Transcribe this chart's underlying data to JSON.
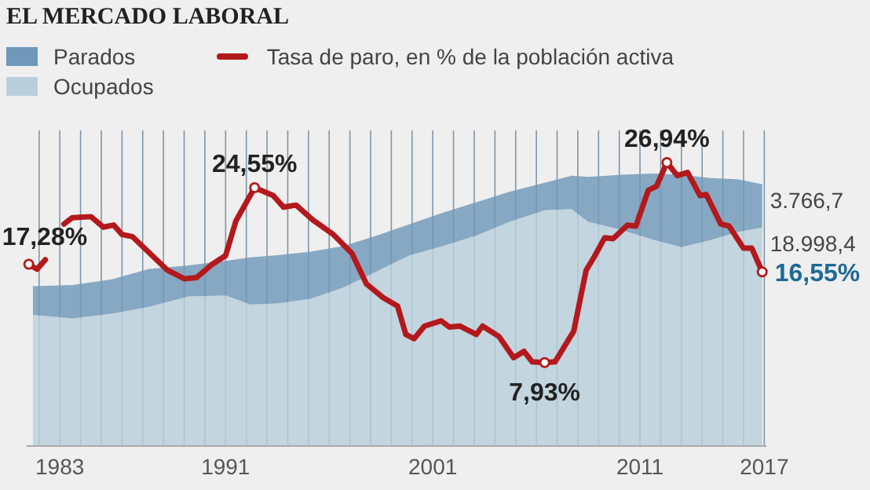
{
  "chart_data": {
    "type": "area",
    "stacked": true,
    "title": "EL MERCADO LABORAL",
    "x": [
      1981.7,
      1983.6,
      1985.5,
      1987.3,
      1989.2,
      1991.0,
      1992.2,
      1993.5,
      1995.1,
      1996.7,
      1998.3,
      1999.9,
      2001.5,
      2003.1,
      2004.7,
      2006.4,
      2007.7,
      2008.5,
      2010.1,
      2011.7,
      2013.0,
      2014.4,
      2015.7,
      2016.9
    ],
    "series": [
      {
        "name": "Ocupados",
        "color": "#b9cfdc",
        "values": [
          11400,
          11100,
          11500,
          12100,
          13000,
          13100,
          12300,
          12400,
          12800,
          13800,
          15200,
          16600,
          17400,
          18300,
          19500,
          20500,
          20600,
          19500,
          18800,
          17900,
          17300,
          17900,
          18600,
          18998.4
        ],
        "value_labels": [
          null,
          null,
          null,
          null,
          null,
          null,
          null,
          null,
          null,
          null,
          null,
          null,
          null,
          null,
          null,
          null,
          null,
          null,
          null,
          null,
          null,
          null,
          null,
          "18.998,4"
        ]
      },
      {
        "name": "Parados",
        "color": "#6f98b9",
        "values": [
          2500,
          2900,
          3000,
          3300,
          2700,
          3000,
          4100,
          4200,
          4100,
          3600,
          3100,
          2700,
          2900,
          2900,
          2600,
          2400,
          2900,
          3900,
          4800,
          5800,
          6300,
          5400,
          4600,
          3766.7
        ],
        "value_labels": [
          null,
          null,
          null,
          null,
          null,
          null,
          null,
          null,
          null,
          null,
          null,
          null,
          null,
          null,
          null,
          null,
          null,
          null,
          null,
          null,
          null,
          null,
          null,
          "3.766,7"
        ]
      },
      {
        "name": "Tasa de paro, en % de la población activa",
        "type": "line",
        "axis": "y2",
        "color": "#b3191c",
        "x": [
          1981.5,
          1981.9,
          1982.3,
          1982.7,
          1983.2,
          1983.6,
          1984.5,
          1985.1,
          1985.6,
          1986.0,
          1986.5,
          1987.3,
          1988.2,
          1989.0,
          1989.6,
          1990.3,
          1991.0,
          1991.5,
          1992.4,
          1993.3,
          1993.8,
          1994.4,
          1995.2,
          1996.2,
          1997.1,
          1997.8,
          1998.6,
          1999.3,
          1999.7,
          2000.1,
          2000.6,
          2001.4,
          2001.8,
          2002.3,
          2003.1,
          2003.4,
          2004.2,
          2004.9,
          2005.4,
          2005.8,
          2006.4,
          2006.9,
          2007.8,
          2008.4,
          2008.8,
          2009.3,
          2009.7,
          2010.4,
          2010.8,
          2011.4,
          2011.8,
          2012.3,
          2012.8,
          2013.3,
          2013.9,
          2014.2,
          2014.9,
          2015.3,
          2016.0,
          2016.4,
          2016.9
        ],
        "values": [
          17.28,
          16.8,
          17.7,
          null,
          21.1,
          21.7,
          21.8,
          20.8,
          21.0,
          20.1,
          19.9,
          18.4,
          16.7,
          15.9,
          16.0,
          17.2,
          18.1,
          21.4,
          24.55,
          23.8,
          22.7,
          22.9,
          21.5,
          20.1,
          18.3,
          15.4,
          14.1,
          13.3,
          10.6,
          10.2,
          11.4,
          11.9,
          11.3,
          11.4,
          10.6,
          11.4,
          10.4,
          8.4,
          9.0,
          8.0,
          7.93,
          8.0,
          10.9,
          16.7,
          18.0,
          19.8,
          19.7,
          21.0,
          20.9,
          24.3,
          24.7,
          26.94,
          25.7,
          26.0,
          23.8,
          23.9,
          21.1,
          20.9,
          18.8,
          18.8,
          16.55
        ],
        "value_labels": [
          "17,28%",
          null,
          null,
          null,
          null,
          null,
          null,
          null,
          null,
          null,
          null,
          null,
          null,
          null,
          null,
          null,
          null,
          null,
          "24,55%",
          null,
          null,
          null,
          null,
          null,
          null,
          null,
          null,
          null,
          null,
          null,
          null,
          null,
          null,
          null,
          null,
          null,
          null,
          null,
          null,
          null,
          "7,93%",
          null,
          null,
          null,
          null,
          null,
          null,
          null,
          null,
          null,
          null,
          "26,94%",
          null,
          null,
          null,
          null,
          null,
          null,
          null,
          null,
          "16,55%"
        ]
      }
    ],
    "xlim": [
      1981.4,
      2017.1
    ],
    "xticks": [
      {
        "value": 1982,
        "label": null
      },
      {
        "value": 1983,
        "label": "1983"
      },
      {
        "value": 1984,
        "label": null
      },
      {
        "value": 1985,
        "label": null
      },
      {
        "value": 1986,
        "label": null
      },
      {
        "value": 1987,
        "label": null
      },
      {
        "value": 1988,
        "label": null
      },
      {
        "value": 1989,
        "label": null
      },
      {
        "value": 1990,
        "label": null
      },
      {
        "value": 1991,
        "label": "1991"
      },
      {
        "value": 1992,
        "label": null
      },
      {
        "value": 1993,
        "label": null
      },
      {
        "value": 1994,
        "label": null
      },
      {
        "value": 1995,
        "label": null
      },
      {
        "value": 1996,
        "label": null
      },
      {
        "value": 1997,
        "label": null
      },
      {
        "value": 1998,
        "label": null
      },
      {
        "value": 1999,
        "label": null
      },
      {
        "value": 2000,
        "label": null
      },
      {
        "value": 2001,
        "label": "2001"
      },
      {
        "value": 2002,
        "label": null
      },
      {
        "value": 2003,
        "label": null
      },
      {
        "value": 2004,
        "label": null
      },
      {
        "value": 2005,
        "label": null
      },
      {
        "value": 2006,
        "label": null
      },
      {
        "value": 2007,
        "label": null
      },
      {
        "value": 2008,
        "label": null
      },
      {
        "value": 2009,
        "label": null
      },
      {
        "value": 2010,
        "label": null
      },
      {
        "value": 2011,
        "label": "2011"
      },
      {
        "value": 2012,
        "label": null
      },
      {
        "value": 2013,
        "label": null
      },
      {
        "value": 2014,
        "label": null
      },
      {
        "value": 2015,
        "label": null
      },
      {
        "value": 2016,
        "label": null
      },
      {
        "value": 2017,
        "label": "2017"
      }
    ],
    "ylim": [
      0,
      27450
    ],
    "y2lim": [
      0,
      30
    ],
    "grid": "x",
    "legend": "top left",
    "tick_labels": "x"
  }
}
